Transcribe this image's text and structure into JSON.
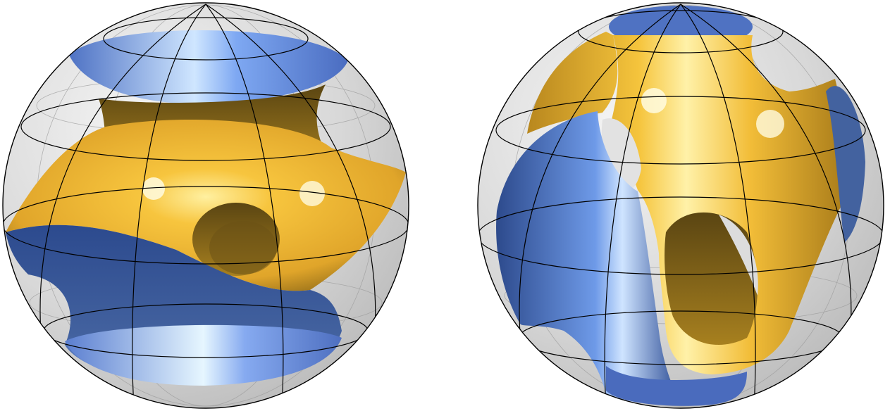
{
  "figure": {
    "background": "#ffffff",
    "panels": [
      {
        "id": "left",
        "shape": "sphere-cut minimal surface (gyroid-like), horizontal band view",
        "colors": {
          "outer_side": "#f2b52c",
          "inner_side": "#5b7fd0",
          "sphere": "#d9d9d9",
          "grid": "#000000"
        }
      },
      {
        "id": "right",
        "shape": "sphere-cut minimal surface (gyroid-like), vertical tube view",
        "colors": {
          "outer_side": "#f2b52c",
          "inner_side": "#5b7fd0",
          "sphere": "#d9d9d9",
          "grid": "#000000"
        }
      }
    ]
  }
}
